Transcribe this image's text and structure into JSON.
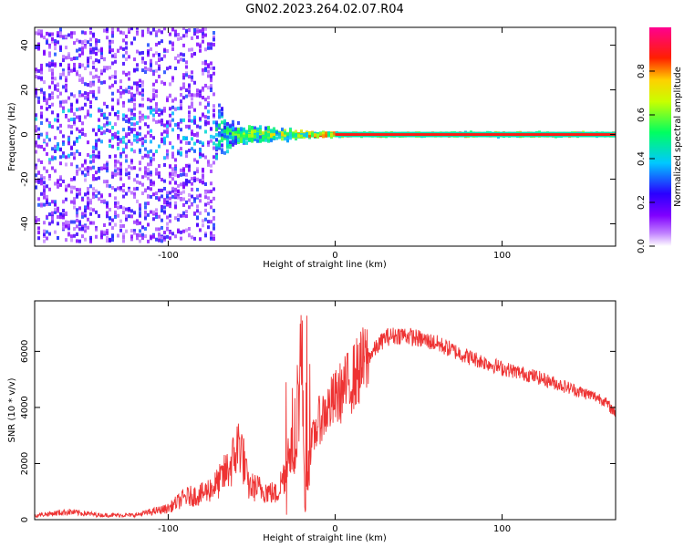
{
  "figure": {
    "title": "GN02.2023.264.02.07.R04"
  },
  "chart_data": [
    {
      "type": "heatmap",
      "xlabel": "Height of straight line (km)",
      "ylabel": "Frequency (Hz)",
      "xlim": [
        -180,
        168
      ],
      "ylim": [
        -50,
        48
      ],
      "xticks": [
        -100,
        0,
        100
      ],
      "yticks": [
        -40,
        -20,
        0,
        20,
        40
      ],
      "grid": false,
      "colorbar": {
        "label": "Normalized spectral amplitude",
        "range": [
          0,
          1
        ],
        "ticks": [
          "0.0",
          "0.2",
          "0.4",
          "0.6",
          "0.8"
        ],
        "colors": [
          "#ffffff",
          "#a020f0",
          "#2a00ff",
          "#00c8ff",
          "#00ff40",
          "#ffff00",
          "#ff2000",
          "#ff0080"
        ]
      },
      "description_points": [
        {
          "x": -180,
          "spread_hz": 48,
          "peak": 0.25
        },
        {
          "x": -100,
          "spread_hz": 48,
          "peak": 0.25
        },
        {
          "x": -60,
          "spread_hz": 8,
          "peak": 0.55
        },
        {
          "x": -20,
          "spread_hz": 3,
          "peak": 0.7
        },
        {
          "x": 0,
          "spread_hz": 1.2,
          "peak": 0.9
        },
        {
          "x": 168,
          "spread_hz": 1.2,
          "peak": 0.9
        }
      ]
    },
    {
      "type": "line",
      "xlabel": "Height of straight line (km)",
      "ylabel": "SNR (10 * v/v)",
      "xlim": [
        -180,
        168
      ],
      "ylim": [
        0,
        7800
      ],
      "xticks": [
        -100,
        0,
        100
      ],
      "yticks": [
        0,
        2000,
        4000,
        6000
      ],
      "grid": false,
      "series": [
        {
          "color": "#ee3333",
          "x": [
            -180,
            -160,
            -140,
            -120,
            -100,
            -90,
            -80,
            -70,
            -62,
            -57,
            -52,
            -45,
            -35,
            -25,
            -20,
            -18,
            -15,
            -10,
            0,
            10,
            20,
            30,
            40,
            60,
            80,
            100,
            120,
            140,
            160,
            168
          ],
          "y": [
            150,
            280,
            160,
            160,
            400,
            800,
            900,
            1300,
            2000,
            2800,
            1200,
            1100,
            900,
            2500,
            6000,
            300,
            2500,
            3500,
            4300,
            5000,
            5800,
            6500,
            6600,
            6300,
            5800,
            5400,
            5100,
            4700,
            4300,
            3800
          ]
        }
      ]
    }
  ]
}
